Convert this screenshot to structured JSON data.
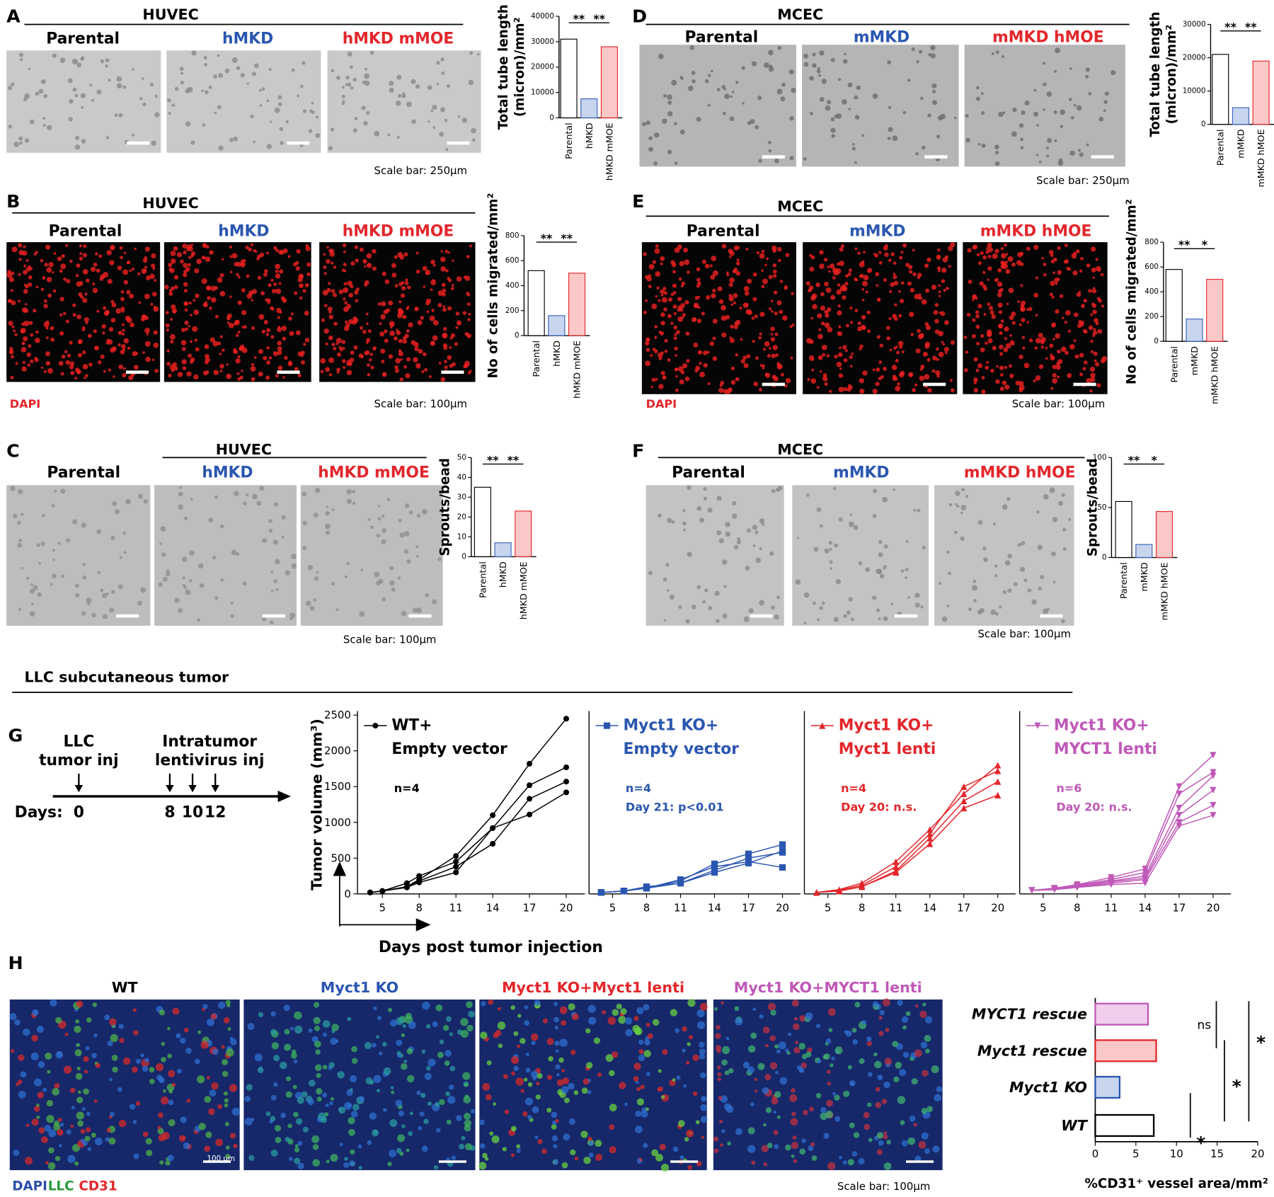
{
  "panels": [
    {
      "label": "A",
      "cell": "HUVEC",
      "conditions": [
        "Parental",
        "hMKD",
        "hMKD mMOE"
      ],
      "condition_colors": [
        "#000000",
        "#2a56b0",
        "#e3262b"
      ],
      "scale_bar": "Scale bar: 250µm",
      "chart": {
        "type": "bar",
        "ylabel": [
          "Total tube length",
          "(micron)/mm²"
        ],
        "categories": [
          "Parental",
          "hMKD",
          "hMKD mMOE"
        ],
        "values": [
          31000,
          7500,
          28000
        ],
        "ylim": [
          0,
          40000
        ],
        "yticks": [
          0,
          10000,
          20000,
          30000,
          40000
        ],
        "significance": [
          "**",
          "**"
        ],
        "fill_colors": [
          "#ffffff",
          "#c7d5ef",
          "#fbc8c8"
        ],
        "edge_colors": [
          "#000000",
          "#3a63b8",
          "#e3262b"
        ]
      }
    },
    {
      "label": "B",
      "cell": "HUVEC",
      "conditions": [
        "Parental",
        "hMKD",
        "hMKD mMOE"
      ],
      "condition_colors": [
        "#000000",
        "#2a56b0",
        "#e3262b"
      ],
      "stain": "DAPI",
      "scale_bar": "Scale bar: 100µm",
      "chart": {
        "type": "bar",
        "ylabel": [
          "No of cells migrated/mm²"
        ],
        "categories": [
          "Parental",
          "hMKD",
          "hMKD mMOE"
        ],
        "values": [
          520,
          160,
          500
        ],
        "ylim": [
          0,
          800
        ],
        "yticks": [
          0,
          200,
          400,
          600,
          800
        ],
        "significance": [
          "**",
          "**"
        ],
        "fill_colors": [
          "#ffffff",
          "#c7d5ef",
          "#fbc8c8"
        ],
        "edge_colors": [
          "#000000",
          "#3a63b8",
          "#e3262b"
        ]
      }
    },
    {
      "label": "C",
      "cell": "HUVEC",
      "conditions": [
        "Parental",
        "hMKD",
        "hMKD mMOE"
      ],
      "condition_colors": [
        "#000000",
        "#2a56b0",
        "#e3262b"
      ],
      "scale_bar": "Scale bar: 100µm",
      "chart": {
        "type": "bar",
        "ylabel": [
          "Sprouts/bead"
        ],
        "categories": [
          "Parental",
          "hMKD",
          "hMKD mMOE"
        ],
        "values": [
          35,
          7,
          23
        ],
        "ylim": [
          0,
          50
        ],
        "yticks": [
          0,
          10,
          20,
          30,
          40,
          50
        ],
        "significance": [
          "**",
          "**"
        ],
        "fill_colors": [
          "#ffffff",
          "#c7d5ef",
          "#fbc8c8"
        ],
        "edge_colors": [
          "#000000",
          "#3a63b8",
          "#e3262b"
        ]
      }
    },
    {
      "label": "D",
      "cell": "MCEC",
      "conditions": [
        "Parental",
        "mMKD",
        "mMKD hMOE"
      ],
      "condition_colors": [
        "#000000",
        "#2a56b0",
        "#e3262b"
      ],
      "scale_bar": "Scale bar: 250µm",
      "chart": {
        "type": "bar",
        "ylabel": [
          "Total tube length",
          "(micron)/mm²"
        ],
        "categories": [
          "Parental",
          "mMKD",
          "mMKD hMOE"
        ],
        "values": [
          21000,
          5000,
          19000
        ],
        "ylim": [
          0,
          30000
        ],
        "yticks": [
          0,
          10000,
          20000,
          30000
        ],
        "significance": [
          "**",
          "**"
        ],
        "fill_colors": [
          "#ffffff",
          "#c7d5ef",
          "#fbc8c8"
        ],
        "edge_colors": [
          "#000000",
          "#3a63b8",
          "#e3262b"
        ]
      }
    },
    {
      "label": "E",
      "cell": "MCEC",
      "conditions": [
        "Parental",
        "mMKD",
        "mMKD hMOE"
      ],
      "condition_colors": [
        "#000000",
        "#2a56b0",
        "#e3262b"
      ],
      "stain": "DAPI",
      "scale_bar": "Scale bar: 100µm",
      "chart": {
        "type": "bar",
        "ylabel": [
          "No of cells migrated/mm²"
        ],
        "categories": [
          "Parental",
          "mMKD",
          "mMKD hMOE"
        ],
        "values": [
          580,
          180,
          500
        ],
        "ylim": [
          0,
          800
        ],
        "yticks": [
          0,
          200,
          400,
          600,
          800
        ],
        "significance": [
          "**",
          "*"
        ],
        "fill_colors": [
          "#ffffff",
          "#c7d5ef",
          "#fbc8c8"
        ],
        "edge_colors": [
          "#000000",
          "#3a63b8",
          "#e3262b"
        ]
      }
    },
    {
      "label": "F",
      "cell": "MCEC",
      "conditions": [
        "Parental",
        "mMKD",
        "mMKD hMOE"
      ],
      "condition_colors": [
        "#000000",
        "#2a56b0",
        "#e3262b"
      ],
      "scale_bar": "Scale bar: 100µm",
      "chart": {
        "type": "bar",
        "ylabel": [
          "Sprouts/bead"
        ],
        "categories": [
          "Parental",
          "mMKD",
          "mMKD hMOE"
        ],
        "values": [
          56,
          13,
          46
        ],
        "ylim": [
          0,
          100
        ],
        "yticks": [
          0,
          50,
          100
        ],
        "significance": [
          "**",
          "*"
        ],
        "fill_colors": [
          "#ffffff",
          "#c7d5ef",
          "#fbc8c8"
        ],
        "edge_colors": [
          "#000000",
          "#3a63b8",
          "#e3262b"
        ]
      }
    }
  ],
  "panel_g": {
    "label": "G",
    "title": "LLC subcutaneous tumor",
    "timeline": {
      "days_label": "Days:",
      "days": [
        0,
        8,
        10,
        12
      ],
      "events": [
        [
          "LLC",
          "tumor inj"
        ],
        [
          "Intratumor",
          "lentivirus inj"
        ]
      ]
    },
    "ylabel": "Tumor volume (mm³)",
    "xlabel": "Days post tumor injection",
    "ylim": [
      0,
      2500
    ],
    "yticks": [
      0,
      500,
      1000,
      1500,
      2000,
      2500
    ],
    "xlim": [
      3.5,
      21
    ],
    "xticks": [
      5,
      8,
      11,
      14,
      17,
      20
    ],
    "charts": [
      {
        "type": "line",
        "legend": [
          "WT+",
          "Empty vector"
        ],
        "color": "#000000",
        "marker": "circle",
        "n_label": "n=4",
        "x": [
          4,
          5,
          7,
          8,
          11,
          14,
          17,
          20
        ],
        "series": [
          [
            20,
            40,
            100,
            200,
            530,
            1100,
            1820,
            2450
          ],
          [
            20,
            40,
            150,
            250,
            450,
            920,
            1520,
            1770
          ],
          [
            20,
            40,
            100,
            180,
            380,
            700,
            1330,
            1570
          ],
          [
            20,
            40,
            90,
            160,
            300,
            920,
            1110,
            1420
          ]
        ]
      },
      {
        "type": "line",
        "legend": [
          "Myct1 KO+",
          "Empty vector"
        ],
        "color": "#2a56b0",
        "marker": "square",
        "n_label": "n=4",
        "stat_label": "Day 21: p<0.01",
        "x": [
          4,
          6,
          8,
          11,
          14,
          17,
          20
        ],
        "series": [
          [
            20,
            40,
            80,
            180,
            420,
            560,
            690
          ],
          [
            20,
            40,
            80,
            150,
            300,
            430,
            600
          ],
          [
            20,
            40,
            100,
            150,
            330,
            500,
            580
          ],
          [
            20,
            40,
            80,
            200,
            380,
            450,
            370
          ]
        ]
      },
      {
        "type": "line",
        "legend": [
          "Myct1 KO+",
          "Myct1 lenti"
        ],
        "color": "#e3262b",
        "marker": "triangle",
        "n_label": "n=4",
        "stat_label": "Day 20: n.s.",
        "x": [
          4,
          6,
          8,
          11,
          14,
          17,
          20
        ],
        "series": [
          [
            20,
            60,
            150,
            450,
            900,
            1400,
            1800
          ],
          [
            20,
            50,
            120,
            380,
            840,
            1500,
            1720
          ],
          [
            20,
            40,
            100,
            320,
            780,
            1300,
            1570
          ],
          [
            20,
            40,
            100,
            300,
            700,
            1200,
            1380
          ]
        ]
      },
      {
        "type": "line",
        "legend": [
          "Myct1 KO+",
          "MYCT1 lenti"
        ],
        "color": "#c058b8",
        "marker": "triangle-down",
        "n_label": "n=6",
        "stat_label": "Day 20: n.s.",
        "x": [
          4,
          6,
          8,
          11,
          14,
          17,
          20
        ],
        "series": [
          [
            50,
            80,
            130,
            230,
            350,
            1500,
            1940
          ],
          [
            50,
            70,
            120,
            200,
            300,
            1400,
            1700
          ],
          [
            50,
            70,
            110,
            180,
            250,
            1200,
            1650
          ],
          [
            50,
            60,
            100,
            170,
            220,
            1100,
            1450
          ],
          [
            50,
            60,
            90,
            150,
            200,
            1000,
            1240
          ],
          [
            50,
            60,
            90,
            130,
            150,
            950,
            1100
          ]
        ]
      }
    ]
  },
  "panel_h": {
    "label": "H",
    "images": [
      "WT",
      "Myct1 KO",
      "Myct1 KO+Myct1 lenti",
      "Myct1 KO+MYCT1 lenti"
    ],
    "image_colors": [
      "#000000",
      "#2a56b0",
      "#e3262b",
      "#c058b8"
    ],
    "stains": [
      {
        "text": "DAPI",
        "color": "#2b4ea8"
      },
      {
        "text": "LLC",
        "color": "#2a9a3a"
      },
      {
        "text": "CD31",
        "color": "#e3262b"
      }
    ],
    "scale_bar": "Scale bar: 100µm",
    "inner_scale": "100 µm",
    "chart": {
      "type": "hbar",
      "categories": [
        "MYCT1 rescue",
        "Myct1 rescue",
        "Myct1 KO",
        "WT"
      ],
      "values": [
        6.5,
        7.5,
        3,
        7.2
      ],
      "fill_colors": [
        "#efcdeb",
        "#fbc8c8",
        "#c7d5ef",
        "#ffffff"
      ],
      "edge_colors": [
        "#c058b8",
        "#e3262b",
        "#2a56b0",
        "#000000"
      ],
      "xlim": [
        0,
        20
      ],
      "xticks": [
        0,
        5,
        10,
        15,
        20
      ],
      "xlabel": "%CD31⁺ vessel area/mm²",
      "significance": [
        "ns",
        "*",
        "*",
        "*"
      ]
    }
  }
}
